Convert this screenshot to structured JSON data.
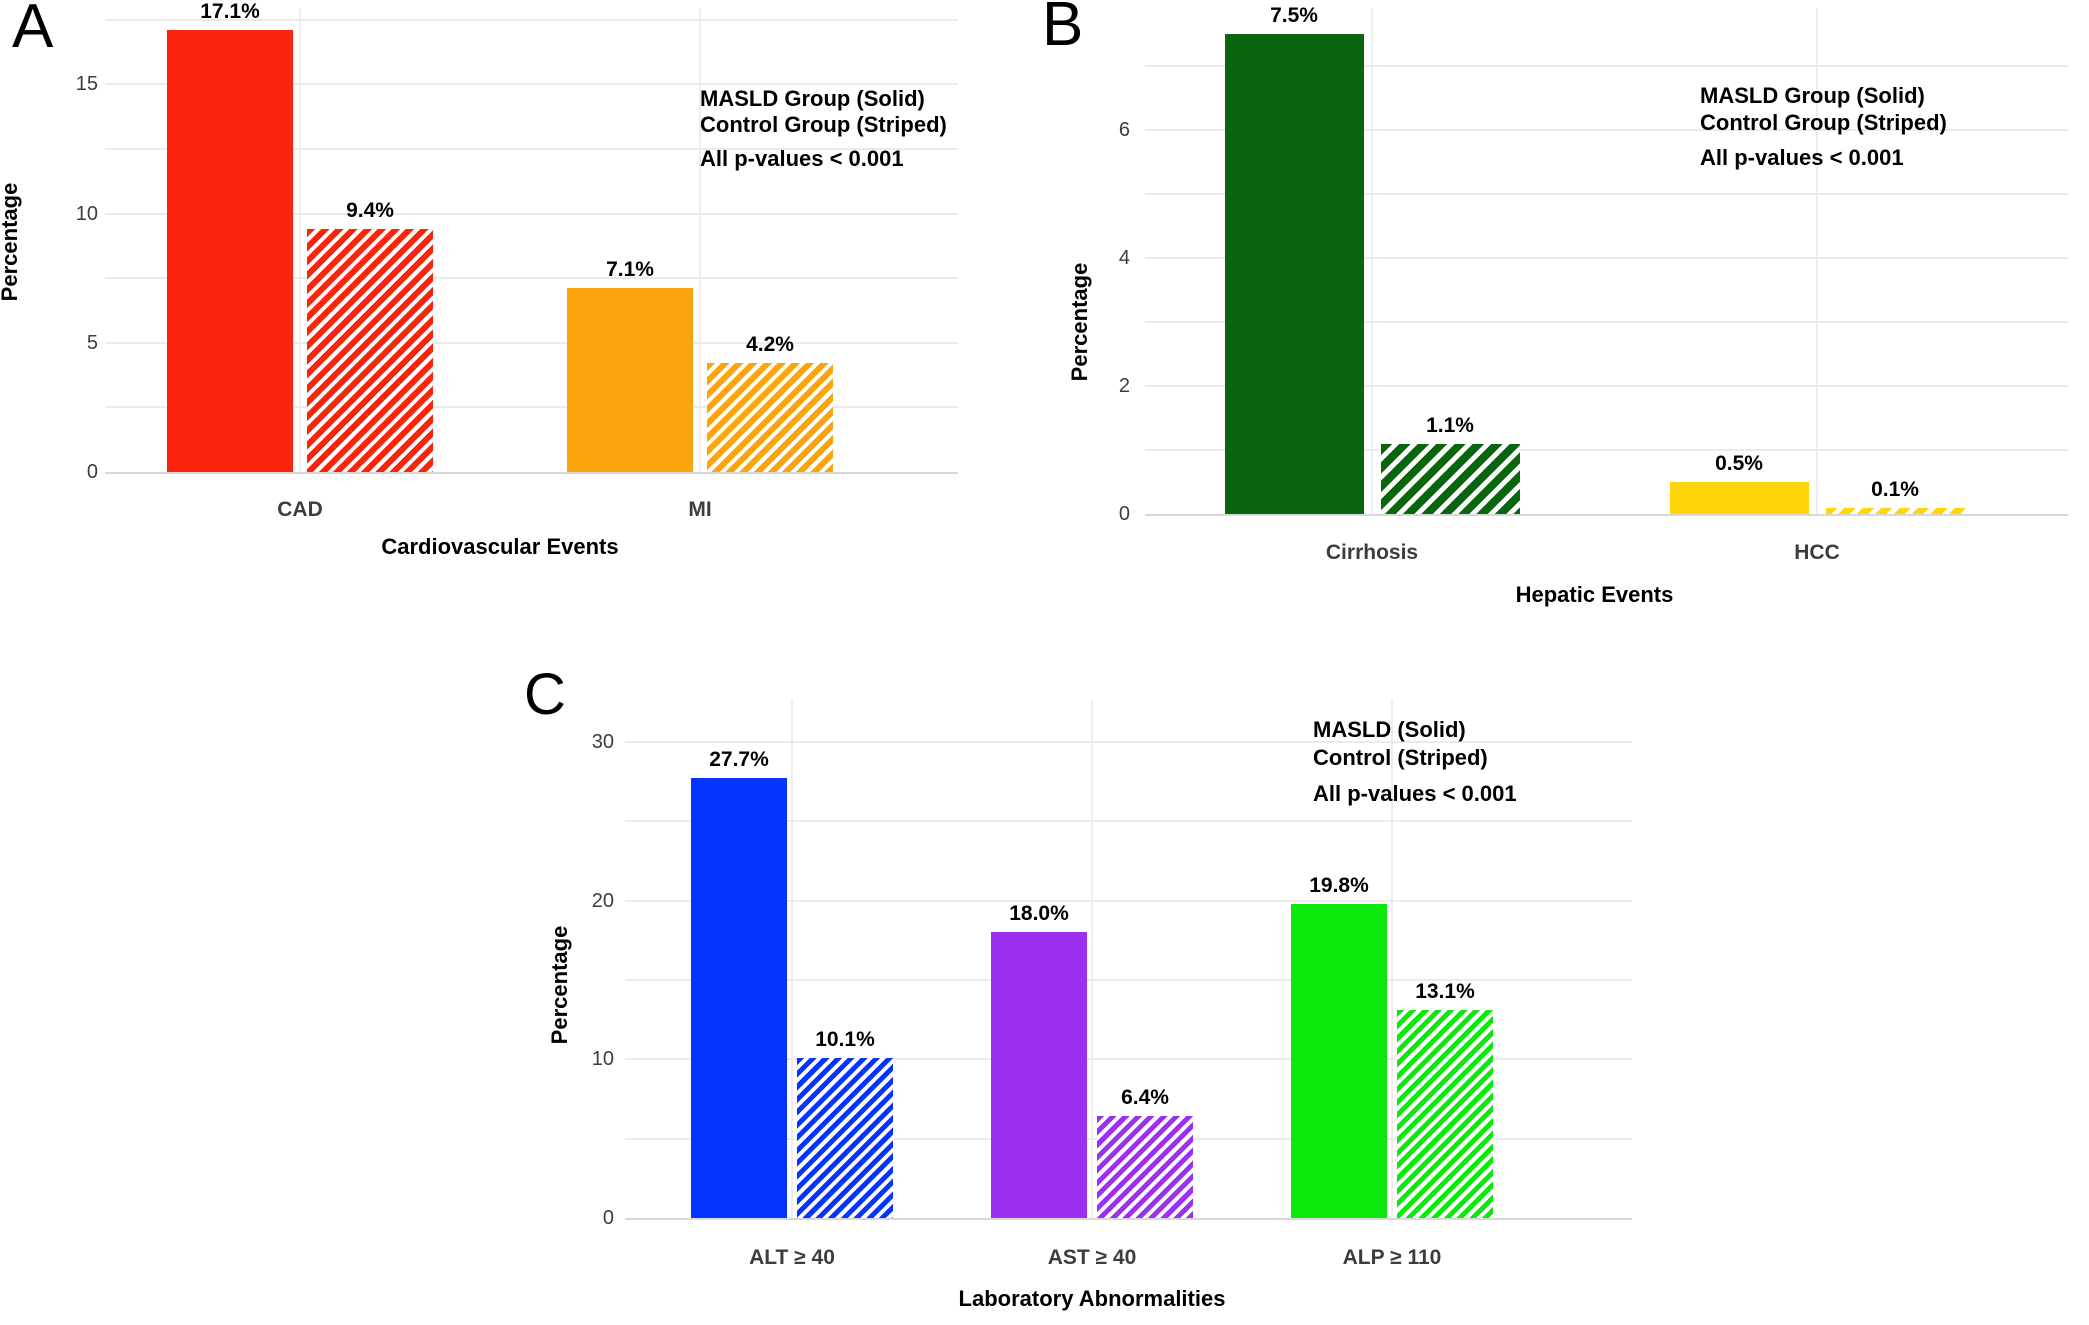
{
  "figure": {
    "background": "#ffffff",
    "panel_letters": [
      "A",
      "B",
      "C"
    ]
  },
  "chart_data": [
    {
      "type": "bar",
      "panel": "A",
      "title": "",
      "xlabel": "Cardiovascular Events",
      "ylabel": "Percentage",
      "categories": [
        "CAD",
        "MI"
      ],
      "series": [
        {
          "name": "MASLD Group",
          "pattern": "solid",
          "values": [
            17.1,
            7.1
          ],
          "value_labels": [
            "17.1%",
            "7.1%"
          ]
        },
        {
          "name": "Control Group",
          "pattern": "striped",
          "values": [
            9.4,
            4.2
          ],
          "value_labels": [
            "9.4%",
            "4.2%"
          ]
        }
      ],
      "category_colors": [
        "#f8250c",
        "#fca40c"
      ],
      "yticks": [
        0,
        5,
        10,
        15
      ],
      "ytick_labels": [
        "0",
        "5",
        "10",
        "15"
      ],
      "minor_grid_step": 2.5,
      "ylim": [
        0,
        18
      ],
      "grid": true,
      "legend_position": "top-right",
      "legend_lines": [
        "MASLD Group (Solid)",
        "Control Group (Striped)"
      ],
      "p_note": "All p-values < 0.001"
    },
    {
      "type": "bar",
      "panel": "B",
      "title": "",
      "xlabel": "Hepatic Events",
      "ylabel": "Percentage",
      "categories": [
        "Cirrhosis",
        "HCC"
      ],
      "series": [
        {
          "name": "MASLD Group",
          "pattern": "solid",
          "values": [
            7.5,
            0.5
          ],
          "value_labels": [
            "7.5%",
            "0.5%"
          ]
        },
        {
          "name": "Control Group",
          "pattern": "striped",
          "values": [
            1.1,
            0.1
          ],
          "value_labels": [
            "1.1%",
            "0.1%"
          ]
        }
      ],
      "category_colors": [
        "#0a650f",
        "#ffd60a"
      ],
      "yticks": [
        0,
        2,
        4,
        6
      ],
      "ytick_labels": [
        "0",
        "2",
        "4",
        "6"
      ],
      "minor_grid_step": 1,
      "ylim": [
        0,
        7.9
      ],
      "grid": true,
      "legend_position": "top-right",
      "legend_lines": [
        "MASLD Group (Solid)",
        "Control Group (Striped)"
      ],
      "p_note": "All p-values < 0.001"
    },
    {
      "type": "bar",
      "panel": "C",
      "title": "",
      "xlabel": "Laboratory Abnormalities",
      "ylabel": "Percentage",
      "categories": [
        "ALT ≥ 40",
        "AST ≥ 40",
        "ALP ≥ 110"
      ],
      "series": [
        {
          "name": "MASLD",
          "pattern": "solid",
          "values": [
            27.7,
            18.0,
            19.8
          ],
          "value_labels": [
            "27.7%",
            "18.0%",
            "19.8%"
          ]
        },
        {
          "name": "Control",
          "pattern": "striped",
          "values": [
            10.1,
            6.4,
            13.1
          ],
          "value_labels": [
            "10.1%",
            "6.4%",
            "13.1%"
          ]
        }
      ],
      "category_colors": [
        "#0533ff",
        "#9b30f2",
        "#0ce80c"
      ],
      "yticks": [
        0,
        10,
        20,
        30
      ],
      "ytick_labels": [
        "0",
        "10",
        "20",
        "30"
      ],
      "minor_grid_step": 5,
      "ylim": [
        0,
        32.6
      ],
      "grid": true,
      "legend_position": "top-right",
      "legend_lines": [
        "MASLD (Solid)",
        "Control (Striped)"
      ],
      "p_note": "All p-values < 0.001"
    }
  ]
}
